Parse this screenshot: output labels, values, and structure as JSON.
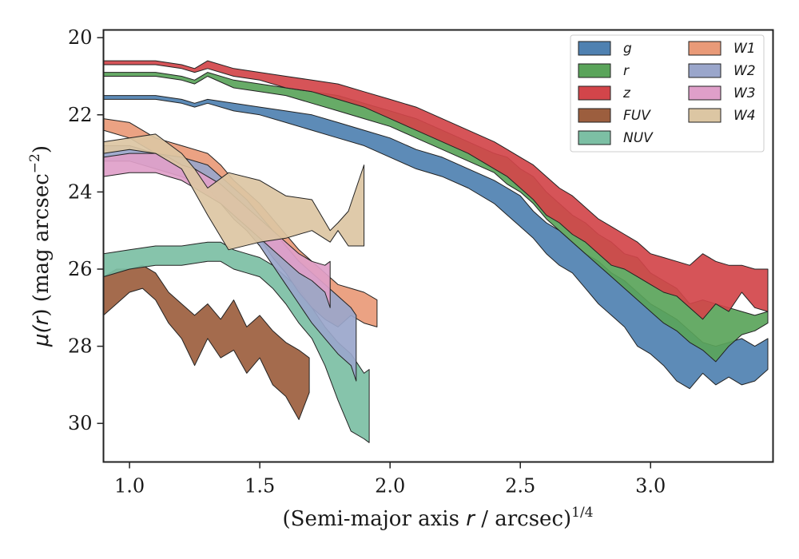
{
  "chart_data": {
    "type": "area",
    "xlabel_main": "(Semi-major axis ",
    "xlabel_var": "r",
    "xlabel_tail": " / arcsec)",
    "xlabel_exp": "1/4",
    "ylabel_main": "μ(",
    "ylabel_var": "r",
    "ylabel_tail": ") (mag arcsec",
    "ylabel_exp": "−2",
    "ylabel_close": ")",
    "xlim": [
      0.9,
      3.47
    ],
    "ylim": [
      31.0,
      19.8
    ],
    "y_inverted": true,
    "grid": false,
    "legend_position": "top-right",
    "x_ticks": [
      1.0,
      1.5,
      2.0,
      2.5,
      3.0
    ],
    "x_tick_labels": [
      "1.0",
      "1.5",
      "2.0",
      "2.5",
      "3.0"
    ],
    "y_ticks": [
      20,
      22,
      24,
      26,
      28,
      30
    ],
    "y_tick_labels": [
      "20",
      "22",
      "24",
      "26",
      "28",
      "30"
    ],
    "legend_order": [
      "g",
      "r",
      "z",
      "FUV",
      "NUV",
      "W1",
      "W2",
      "W3",
      "W4"
    ],
    "series": [
      {
        "name": "FUV",
        "color": "#9c5e3e",
        "x": [
          0.9,
          0.95,
          1.0,
          1.05,
          1.1,
          1.15,
          1.2,
          1.25,
          1.3,
          1.35,
          1.4,
          1.45,
          1.5,
          1.55,
          1.6,
          1.65,
          1.69
        ],
        "lower": [
          26.2,
          26.0,
          26.0,
          25.9,
          26.1,
          26.6,
          26.9,
          27.2,
          26.9,
          27.3,
          26.8,
          27.5,
          27.2,
          27.6,
          27.9,
          28.1,
          28.3
        ],
        "upper": [
          27.2,
          26.9,
          26.6,
          26.5,
          26.8,
          27.4,
          27.8,
          28.5,
          27.8,
          28.3,
          28.1,
          28.7,
          28.3,
          29.0,
          29.3,
          29.9,
          29.2
        ]
      },
      {
        "name": "NUV",
        "color": "#7cbfa4",
        "x": [
          0.9,
          1.0,
          1.1,
          1.2,
          1.3,
          1.35,
          1.4,
          1.45,
          1.5,
          1.55,
          1.6,
          1.65,
          1.7,
          1.75,
          1.8,
          1.85,
          1.9,
          1.92
        ],
        "lower": [
          25.6,
          25.5,
          25.4,
          25.4,
          25.3,
          25.3,
          25.5,
          25.6,
          25.7,
          25.9,
          26.2,
          26.5,
          27.0,
          27.5,
          27.9,
          28.2,
          28.7,
          28.6
        ],
        "upper": [
          26.2,
          26.0,
          25.9,
          25.9,
          25.8,
          25.8,
          26.0,
          26.1,
          26.2,
          26.5,
          26.9,
          27.4,
          27.8,
          28.5,
          29.4,
          30.2,
          30.4,
          30.5
        ]
      },
      {
        "name": "W1",
        "color": "#e99a78",
        "x": [
          0.9,
          1.0,
          1.1,
          1.2,
          1.3,
          1.35,
          1.4,
          1.45,
          1.5,
          1.55,
          1.6,
          1.65,
          1.7,
          1.75,
          1.8,
          1.85,
          1.9,
          1.95
        ],
        "lower": [
          22.1,
          22.2,
          22.6,
          22.8,
          23.0,
          23.3,
          23.7,
          24.0,
          24.3,
          24.7,
          25.1,
          25.5,
          25.8,
          26.1,
          26.4,
          26.5,
          26.6,
          26.8
        ],
        "upper": [
          22.4,
          22.6,
          23.0,
          23.3,
          23.6,
          24.0,
          24.5,
          24.8,
          25.2,
          25.7,
          26.1,
          26.6,
          27.0,
          27.3,
          27.5,
          27.2,
          27.4,
          27.5
        ]
      },
      {
        "name": "W2",
        "color": "#9aa6cb",
        "x": [
          0.9,
          1.0,
          1.1,
          1.2,
          1.3,
          1.35,
          1.4,
          1.45,
          1.5,
          1.55,
          1.6,
          1.65,
          1.7,
          1.75,
          1.8,
          1.85,
          1.87
        ],
        "lower": [
          22.8,
          22.8,
          23.0,
          23.1,
          23.3,
          23.6,
          23.9,
          24.2,
          24.6,
          25.0,
          25.4,
          25.8,
          26.1,
          26.4,
          26.7,
          27.0,
          27.2
        ],
        "upper": [
          23.2,
          23.2,
          23.4,
          23.6,
          23.9,
          24.3,
          24.7,
          25.0,
          25.4,
          25.9,
          26.4,
          26.9,
          27.4,
          27.8,
          28.2,
          28.5,
          28.9
        ]
      },
      {
        "name": "W3",
        "color": "#df9fc9",
        "x": [
          0.9,
          1.0,
          1.1,
          1.15,
          1.2,
          1.25,
          1.3,
          1.35,
          1.4,
          1.45,
          1.5,
          1.55,
          1.6,
          1.65,
          1.7,
          1.75,
          1.77
        ],
        "lower": [
          23.1,
          23.0,
          23.0,
          23.1,
          23.3,
          23.4,
          23.6,
          23.8,
          24.1,
          24.4,
          24.7,
          25.0,
          25.3,
          25.6,
          25.8,
          25.9,
          25.8
        ],
        "upper": [
          23.6,
          23.5,
          23.5,
          23.6,
          23.7,
          23.9,
          24.1,
          24.3,
          24.6,
          24.9,
          25.2,
          25.5,
          25.8,
          26.1,
          26.3,
          26.6,
          27.0
        ]
      },
      {
        "name": "W4",
        "color": "#dcc6a3",
        "x": [
          0.9,
          1.0,
          1.1,
          1.2,
          1.25,
          1.3,
          1.38,
          1.5,
          1.6,
          1.7,
          1.77,
          1.8,
          1.84,
          1.9
        ],
        "lower": [
          22.7,
          22.6,
          22.5,
          23.0,
          23.4,
          23.9,
          23.5,
          23.7,
          24.1,
          24.2,
          25.0,
          24.8,
          24.5,
          23.3
        ],
        "upper": [
          23.0,
          22.9,
          23.0,
          23.4,
          24.0,
          24.6,
          25.5,
          25.3,
          25.2,
          25.0,
          25.3,
          25.0,
          25.4,
          25.4
        ]
      },
      {
        "name": "g",
        "color": "#4f81b1",
        "x": [
          0.9,
          1.0,
          1.1,
          1.2,
          1.25,
          1.3,
          1.4,
          1.5,
          1.6,
          1.7,
          1.8,
          1.9,
          2.0,
          2.1,
          2.2,
          2.3,
          2.4,
          2.45,
          2.5,
          2.55,
          2.6,
          2.65,
          2.7,
          2.75,
          2.8,
          2.85,
          2.9,
          2.95,
          3.0,
          3.05,
          3.1,
          3.15,
          3.2,
          3.25,
          3.3,
          3.35,
          3.4,
          3.45
        ],
        "lower": [
          21.5,
          21.5,
          21.5,
          21.6,
          21.7,
          21.6,
          21.7,
          21.8,
          21.9,
          22.0,
          22.2,
          22.4,
          22.6,
          22.9,
          23.1,
          23.4,
          23.7,
          23.9,
          24.1,
          24.5,
          24.8,
          25.0,
          25.3,
          25.6,
          25.8,
          26.1,
          26.3,
          26.6,
          26.9,
          27.1,
          27.3,
          27.6,
          27.9,
          28.0,
          27.9,
          27.8,
          28.0,
          27.8
        ],
        "upper": [
          21.6,
          21.6,
          21.6,
          21.7,
          21.8,
          21.7,
          21.9,
          22.0,
          22.2,
          22.4,
          22.6,
          22.8,
          23.1,
          23.4,
          23.6,
          23.9,
          24.3,
          24.6,
          24.9,
          25.2,
          25.6,
          25.9,
          26.1,
          26.5,
          26.9,
          27.2,
          27.5,
          28.0,
          28.2,
          28.5,
          28.9,
          29.1,
          28.7,
          29.0,
          28.8,
          29.0,
          28.9,
          28.6
        ]
      },
      {
        "name": "r",
        "color": "#5aa45a",
        "x": [
          0.9,
          1.0,
          1.1,
          1.2,
          1.25,
          1.3,
          1.4,
          1.5,
          1.6,
          1.7,
          1.8,
          1.9,
          2.0,
          2.1,
          2.2,
          2.3,
          2.4,
          2.45,
          2.5,
          2.55,
          2.6,
          2.65,
          2.7,
          2.75,
          2.8,
          2.85,
          2.9,
          2.95,
          3.0,
          3.05,
          3.1,
          3.15,
          3.2,
          3.25,
          3.3,
          3.35,
          3.4,
          3.45
        ],
        "lower": [
          20.9,
          20.9,
          20.9,
          21.0,
          21.1,
          20.9,
          21.1,
          21.2,
          21.3,
          21.4,
          21.5,
          21.7,
          21.9,
          22.1,
          22.4,
          22.7,
          23.0,
          23.1,
          23.4,
          23.6,
          24.0,
          24.3,
          24.6,
          24.8,
          25.1,
          25.3,
          25.6,
          25.7,
          26.1,
          26.3,
          26.5,
          26.9,
          26.8,
          26.9,
          27.0,
          27.1,
          27.2,
          27.1
        ],
        "upper": [
          21.0,
          21.0,
          21.0,
          21.1,
          21.2,
          21.0,
          21.3,
          21.4,
          21.5,
          21.7,
          21.9,
          22.1,
          22.3,
          22.6,
          22.9,
          23.2,
          23.5,
          23.8,
          24.0,
          24.3,
          24.7,
          25.0,
          25.3,
          25.6,
          25.9,
          26.2,
          26.5,
          26.8,
          27.1,
          27.4,
          27.6,
          27.9,
          28.1,
          28.4,
          28.0,
          27.7,
          27.6,
          27.4
        ]
      },
      {
        "name": "z",
        "color": "#d2454a",
        "x": [
          0.9,
          1.0,
          1.1,
          1.2,
          1.25,
          1.3,
          1.4,
          1.5,
          1.6,
          1.7,
          1.8,
          1.9,
          2.0,
          2.1,
          2.2,
          2.3,
          2.4,
          2.45,
          2.5,
          2.55,
          2.6,
          2.65,
          2.7,
          2.75,
          2.8,
          2.85,
          2.9,
          2.95,
          3.0,
          3.05,
          3.1,
          3.15,
          3.2,
          3.25,
          3.3,
          3.35,
          3.4,
          3.45
        ],
        "lower": [
          20.6,
          20.6,
          20.6,
          20.7,
          20.8,
          20.6,
          20.8,
          20.9,
          21.0,
          21.1,
          21.2,
          21.4,
          21.6,
          21.8,
          22.1,
          22.4,
          22.7,
          22.9,
          23.1,
          23.3,
          23.6,
          23.9,
          24.1,
          24.4,
          24.7,
          24.9,
          25.1,
          25.3,
          25.6,
          25.7,
          25.8,
          25.9,
          25.6,
          25.8,
          25.9,
          25.9,
          26.0,
          26.0
        ],
        "upper": [
          20.7,
          20.7,
          20.7,
          20.8,
          20.9,
          20.8,
          21.0,
          21.1,
          21.3,
          21.4,
          21.6,
          21.8,
          22.1,
          22.4,
          22.7,
          23.0,
          23.4,
          23.6,
          23.9,
          24.2,
          24.6,
          24.8,
          25.1,
          25.3,
          25.6,
          25.9,
          26.0,
          26.2,
          26.4,
          26.6,
          26.7,
          27.0,
          27.3,
          26.9,
          27.1,
          26.6,
          27.0,
          27.1
        ]
      }
    ]
  }
}
